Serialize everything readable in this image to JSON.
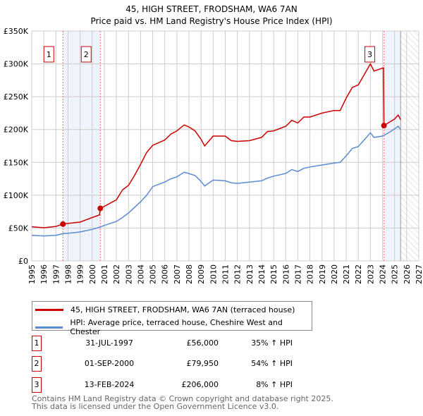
{
  "chart_data": {
    "type": "line",
    "title": "45, HIGH STREET, FRODSHAM, WA6 7AN",
    "subtitle": "Price paid vs. HM Land Registry's House Price Index (HPI)",
    "xlim": [
      1995,
      2027
    ],
    "ylim": [
      0,
      350000
    ],
    "x_ticks": [
      "1995",
      "1996",
      "1997",
      "1998",
      "1999",
      "2000",
      "2001",
      "2002",
      "2003",
      "2004",
      "2005",
      "2006",
      "2007",
      "2008",
      "2009",
      "2010",
      "2011",
      "2012",
      "2013",
      "2014",
      "2015",
      "2016",
      "2017",
      "2018",
      "2019",
      "2020",
      "2021",
      "2022",
      "2023",
      "2024",
      "2025",
      "2026",
      "2027"
    ],
    "y_ticks": [
      {
        "v": 0,
        "label": "£0"
      },
      {
        "v": 50000,
        "label": "£50K"
      },
      {
        "v": 100000,
        "label": "£100K"
      },
      {
        "v": 150000,
        "label": "£150K"
      },
      {
        "v": 200000,
        "label": "£200K"
      },
      {
        "v": 250000,
        "label": "£250K"
      },
      {
        "v": 300000,
        "label": "£300K"
      },
      {
        "v": 350000,
        "label": "£350K"
      }
    ],
    "grid": true,
    "shaded_periods": [
      [
        1997.58,
        2000.67
      ],
      [
        2024.12,
        2025.5
      ]
    ],
    "forecast_hatch_from": 2025.5,
    "series": [
      {
        "name": "45, HIGH STREET, FRODSHAM, WA6 7AN (terraced house)",
        "color": "#cc0000",
        "x": [
          1995,
          1996,
          1997,
          1997.58,
          1998,
          1999,
          2000,
          2000.6,
          2000.67,
          2001,
          2002,
          2002.5,
          2003,
          2003.5,
          2004,
          2004.5,
          2005,
          2006,
          2006.5,
          2007,
          2007.6,
          2008,
          2008.5,
          2009,
          2009.3,
          2010,
          2011,
          2011.5,
          2012,
          2013,
          2014,
          2014.5,
          2015,
          2016,
          2016.5,
          2017,
          2017.5,
          2018,
          2019,
          2020,
          2020.5,
          2021,
          2021.5,
          2022,
          2023,
          2023.3,
          2024.08,
          2024.12,
          2025,
          2025.3,
          2025.5
        ],
        "y": [
          52000,
          50500,
          52500,
          56000,
          57000,
          59000,
          66000,
          70000,
          79950,
          83000,
          93000,
          108000,
          115000,
          130000,
          147000,
          165000,
          176000,
          184000,
          193000,
          198000,
          207000,
          204000,
          198000,
          185000,
          175000,
          190000,
          190000,
          183000,
          182000,
          183000,
          188000,
          197000,
          198000,
          205000,
          214000,
          210000,
          219000,
          219000,
          225000,
          229000,
          229000,
          248000,
          264000,
          268000,
          300000,
          289000,
          294000,
          206000,
          216000,
          222000,
          215000
        ]
      },
      {
        "name": "HPI: Average price, terraced house, Cheshire West and Chester",
        "color": "#5b8bd0",
        "x": [
          1995,
          1996,
          1997,
          1997.6,
          1998,
          1999,
          2000,
          2000.7,
          2001,
          2002,
          2002.5,
          2003,
          2004,
          2004.5,
          2005,
          2006,
          2006.5,
          2007,
          2007.6,
          2008,
          2008.5,
          2009,
          2009.3,
          2010,
          2011,
          2011.5,
          2012,
          2013,
          2014,
          2014.5,
          2015,
          2016,
          2016.5,
          2017,
          2017.5,
          2018,
          2019,
          2020,
          2020.5,
          2021,
          2021.5,
          2022,
          2023,
          2023.3,
          2024,
          2024.5,
          2025,
          2025.3,
          2025.5
        ],
        "y": [
          39000,
          38000,
          39000,
          41500,
          42000,
          44000,
          48000,
          51800,
          54000,
          60000,
          66000,
          73000,
          90000,
          100000,
          113000,
          120000,
          125000,
          128000,
          135000,
          133000,
          130000,
          121000,
          114000,
          123000,
          122000,
          119000,
          118000,
          120000,
          122000,
          126000,
          129000,
          133000,
          139000,
          136000,
          141000,
          143000,
          146000,
          149000,
          150000,
          160000,
          171000,
          174000,
          195000,
          188000,
          190000,
          195000,
          201000,
          205000,
          200000
        ]
      }
    ],
    "sales": [
      {
        "label": "1",
        "x": 1997.58,
        "y": 56000
      },
      {
        "label": "2",
        "x": 2000.67,
        "y": 79950
      },
      {
        "label": "3",
        "x": 2024.12,
        "y": 206000
      }
    ]
  },
  "legend": {
    "property": "45, HIGH STREET, FRODSHAM, WA6 7AN (terraced house)",
    "hpi": "HPI: Average price, terraced house, Cheshire West and Chester"
  },
  "transactions": [
    {
      "num": "1",
      "date": "31-JUL-1997",
      "price": "£56,000",
      "hpi": "35% ↑ HPI"
    },
    {
      "num": "2",
      "date": "01-SEP-2000",
      "price": "£79,950",
      "hpi": "54% ↑ HPI"
    },
    {
      "num": "3",
      "date": "13-FEB-2024",
      "price": "£206,000",
      "hpi": "8% ↑ HPI"
    }
  ],
  "footer": {
    "line1": "Contains HM Land Registry data © Crown copyright and database right 2025.",
    "line2": "This data is licensed under the Open Government Licence v3.0."
  }
}
